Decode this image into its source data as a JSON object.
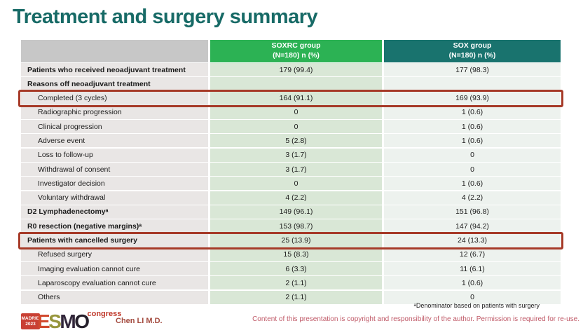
{
  "title": "Treatment and surgery summary",
  "table": {
    "header": {
      "soxrc": {
        "title": "SOXRC group",
        "sub": "(N=180)  n (%)"
      },
      "sox": {
        "title": "SOX group",
        "sub": "(N=180)  n (%)"
      }
    },
    "rows": [
      {
        "label": "Patients who received neoadjuvant treatment",
        "soxrc": "179 (99.4)",
        "sox": "177 (98.3)",
        "bold": true,
        "indent": false,
        "highlight": false
      },
      {
        "label": "Reasons off neoadjuvant treatment",
        "soxrc": "",
        "sox": "",
        "bold": true,
        "indent": false,
        "highlight": false
      },
      {
        "label": "Completed (3 cycles)",
        "soxrc": "164 (91.1)",
        "sox": "169 (93.9)",
        "bold": false,
        "indent": true,
        "highlight": true
      },
      {
        "label": "Radiographic progression",
        "soxrc": "0",
        "sox": "1 (0.6)",
        "bold": false,
        "indent": true,
        "highlight": false
      },
      {
        "label": "Clinical progression",
        "soxrc": "0",
        "sox": "1 (0.6)",
        "bold": false,
        "indent": true,
        "highlight": false
      },
      {
        "label": "Adverse event",
        "soxrc": "5 (2.8)",
        "sox": "1 (0.6)",
        "bold": false,
        "indent": true,
        "highlight": false
      },
      {
        "label": "Loss to follow-up",
        "soxrc": "3 (1.7)",
        "sox": "0",
        "bold": false,
        "indent": true,
        "highlight": false
      },
      {
        "label": "Withdrawal of consent",
        "soxrc": "3 (1.7)",
        "sox": "0",
        "bold": false,
        "indent": true,
        "highlight": false
      },
      {
        "label": "Investigator decision",
        "soxrc": "0",
        "sox": "1 (0.6)",
        "bold": false,
        "indent": true,
        "highlight": false
      },
      {
        "label": "Voluntary withdrawal",
        "soxrc": "4 (2.2)",
        "sox": "4 (2.2)",
        "bold": false,
        "indent": true,
        "highlight": false
      },
      {
        "label": "D2 Lymphadenectomyᵃ",
        "soxrc": "149 (96.1)",
        "sox": "151 (96.8)",
        "bold": true,
        "indent": false,
        "highlight": false
      },
      {
        "label": "R0 resection (negative margins)ᵃ",
        "soxrc": "153 (98.7)",
        "sox": "147 (94.2)",
        "bold": true,
        "indent": false,
        "highlight": false
      },
      {
        "label": "Patients with cancelled surgery",
        "soxrc": "25 (13.9)",
        "sox": "24 (13.3)",
        "bold": true,
        "indent": false,
        "highlight": true
      },
      {
        "label": "Refused surgery",
        "soxrc": "15 (8.3)",
        "sox": "12 (6.7)",
        "bold": false,
        "indent": true,
        "highlight": false
      },
      {
        "label": "Imaging evaluation cannot cure",
        "soxrc": "6 (3.3)",
        "sox": "11 (6.1)",
        "bold": false,
        "indent": true,
        "highlight": false
      },
      {
        "label": "Laparoscopy evaluation cannot cure",
        "soxrc": "2 (1.1)",
        "sox": "1 (0.6)",
        "bold": false,
        "indent": true,
        "highlight": false
      },
      {
        "label": "Others",
        "soxrc": "2 (1.1)",
        "sox": "0",
        "bold": false,
        "indent": true,
        "highlight": false
      }
    ]
  },
  "footer": {
    "logo": {
      "madrid_line1": "MADRID",
      "madrid_line2": "2023",
      "letters": [
        "E",
        "S",
        "M",
        "O"
      ],
      "congress": "congress"
    },
    "author": "Chen LI M.D.",
    "footnote": "ᵃDenominator based on patients with surgery",
    "copyright": "Content of this presentation is copyright and responsibility of the author.  Permission is required for re-use."
  },
  "colors": {
    "title": "#176a66",
    "header_soxrc": "#2cb254",
    "header_sox": "#19736e",
    "label_col_bg": "#e9e6e5",
    "soxrc_col_bg": "#d9e7d6",
    "sox_col_bg": "#edf2ee",
    "highlight_border": "#a63a28",
    "author_text": "#a34a3e",
    "copyright_text": "#c05a68"
  }
}
